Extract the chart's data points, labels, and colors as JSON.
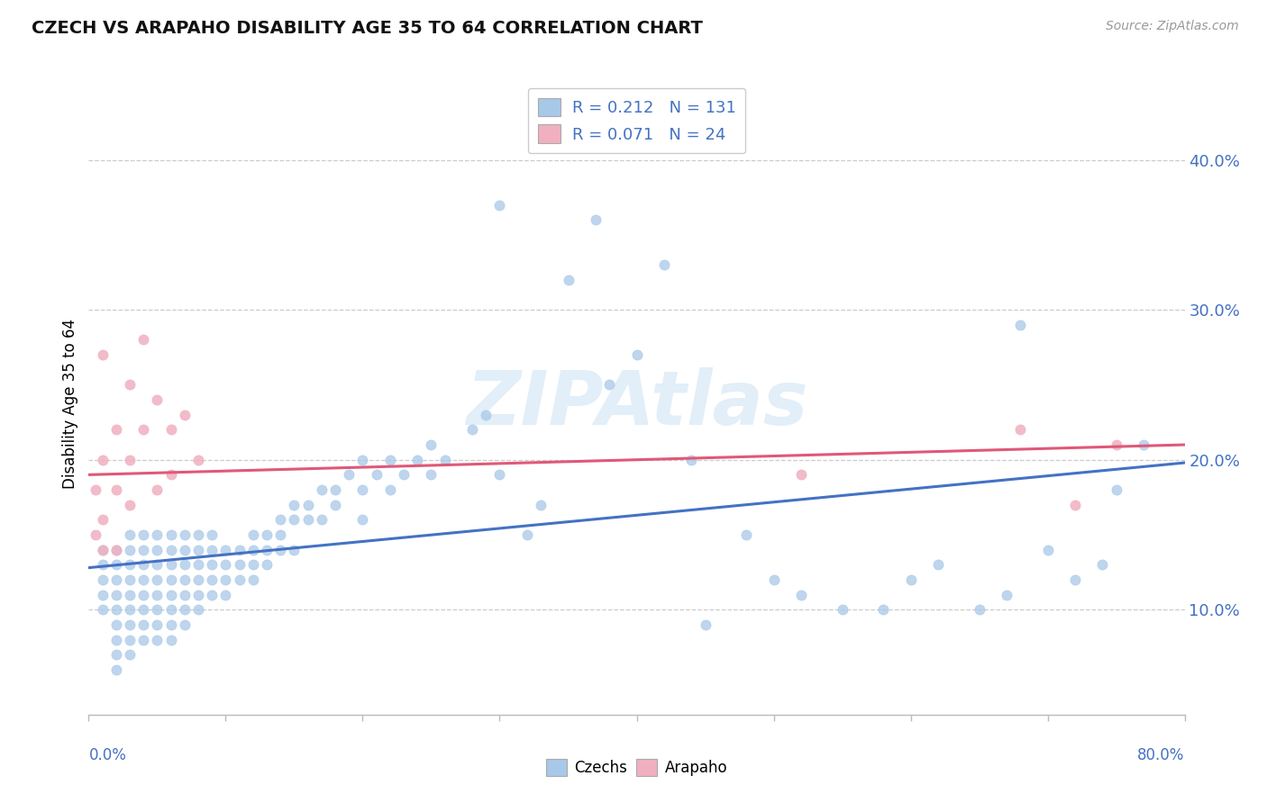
{
  "title": "CZECH VS ARAPAHO DISABILITY AGE 35 TO 64 CORRELATION CHART",
  "source": "Source: ZipAtlas.com",
  "ylabel": "Disability Age 35 to 64",
  "xlim": [
    0.0,
    0.8
  ],
  "ylim": [
    0.03,
    0.445
  ],
  "yticks": [
    0.1,
    0.2,
    0.3,
    0.4
  ],
  "ytick_labels": [
    "10.0%",
    "20.0%",
    "30.0%",
    "40.0%"
  ],
  "xtick_left": "0.0%",
  "xtick_right": "80.0%",
  "blue_scatter_color": "#a8c8e8",
  "pink_scatter_color": "#f0b0c0",
  "blue_line_color": "#4472c4",
  "pink_line_color": "#e05878",
  "axis_color": "#4472c4",
  "legend_line1": "R = 0.212   N = 131",
  "legend_line2": "R = 0.071   N = 24",
  "label_czechs": "Czechs",
  "label_arapaho": "Arapaho",
  "watermark": "ZIPAtlas",
  "czechs_x": [
    0.01,
    0.01,
    0.01,
    0.01,
    0.01,
    0.02,
    0.02,
    0.02,
    0.02,
    0.02,
    0.02,
    0.02,
    0.02,
    0.02,
    0.03,
    0.03,
    0.03,
    0.03,
    0.03,
    0.03,
    0.03,
    0.03,
    0.03,
    0.04,
    0.04,
    0.04,
    0.04,
    0.04,
    0.04,
    0.04,
    0.04,
    0.05,
    0.05,
    0.05,
    0.05,
    0.05,
    0.05,
    0.05,
    0.05,
    0.06,
    0.06,
    0.06,
    0.06,
    0.06,
    0.06,
    0.06,
    0.06,
    0.07,
    0.07,
    0.07,
    0.07,
    0.07,
    0.07,
    0.07,
    0.08,
    0.08,
    0.08,
    0.08,
    0.08,
    0.08,
    0.09,
    0.09,
    0.09,
    0.09,
    0.09,
    0.1,
    0.1,
    0.1,
    0.1,
    0.11,
    0.11,
    0.11,
    0.12,
    0.12,
    0.12,
    0.12,
    0.13,
    0.13,
    0.13,
    0.14,
    0.14,
    0.14,
    0.15,
    0.15,
    0.15,
    0.16,
    0.16,
    0.17,
    0.17,
    0.18,
    0.18,
    0.19,
    0.2,
    0.2,
    0.2,
    0.21,
    0.22,
    0.22,
    0.23,
    0.24,
    0.25,
    0.25,
    0.26,
    0.28,
    0.29,
    0.3,
    0.3,
    0.32,
    0.33,
    0.35,
    0.37,
    0.38,
    0.4,
    0.42,
    0.44,
    0.45,
    0.48,
    0.5,
    0.52,
    0.55,
    0.58,
    0.6,
    0.62,
    0.65,
    0.67,
    0.68,
    0.7,
    0.72,
    0.74,
    0.75,
    0.77
  ],
  "czechs_y": [
    0.14,
    0.13,
    0.12,
    0.11,
    0.1,
    0.14,
    0.13,
    0.12,
    0.11,
    0.1,
    0.09,
    0.08,
    0.07,
    0.06,
    0.15,
    0.14,
    0.13,
    0.12,
    0.11,
    0.1,
    0.09,
    0.08,
    0.07,
    0.15,
    0.14,
    0.13,
    0.12,
    0.11,
    0.1,
    0.09,
    0.08,
    0.15,
    0.14,
    0.13,
    0.12,
    0.11,
    0.1,
    0.09,
    0.08,
    0.15,
    0.14,
    0.13,
    0.12,
    0.11,
    0.1,
    0.09,
    0.08,
    0.15,
    0.14,
    0.13,
    0.12,
    0.11,
    0.1,
    0.09,
    0.15,
    0.14,
    0.13,
    0.12,
    0.11,
    0.1,
    0.15,
    0.14,
    0.13,
    0.12,
    0.11,
    0.14,
    0.13,
    0.12,
    0.11,
    0.14,
    0.13,
    0.12,
    0.15,
    0.14,
    0.13,
    0.12,
    0.15,
    0.14,
    0.13,
    0.16,
    0.15,
    0.14,
    0.17,
    0.16,
    0.14,
    0.17,
    0.16,
    0.18,
    0.16,
    0.18,
    0.17,
    0.19,
    0.2,
    0.18,
    0.16,
    0.19,
    0.2,
    0.18,
    0.19,
    0.2,
    0.21,
    0.19,
    0.2,
    0.22,
    0.23,
    0.19,
    0.37,
    0.15,
    0.17,
    0.32,
    0.36,
    0.25,
    0.27,
    0.33,
    0.2,
    0.09,
    0.15,
    0.12,
    0.11,
    0.1,
    0.1,
    0.12,
    0.13,
    0.1,
    0.11,
    0.29,
    0.14,
    0.12,
    0.13,
    0.18,
    0.21
  ],
  "arapaho_x": [
    0.005,
    0.005,
    0.01,
    0.01,
    0.01,
    0.01,
    0.02,
    0.02,
    0.02,
    0.03,
    0.03,
    0.03,
    0.04,
    0.04,
    0.05,
    0.05,
    0.06,
    0.06,
    0.07,
    0.08,
    0.52,
    0.68,
    0.72,
    0.75
  ],
  "arapaho_y": [
    0.18,
    0.15,
    0.27,
    0.2,
    0.16,
    0.14,
    0.22,
    0.18,
    0.14,
    0.25,
    0.2,
    0.17,
    0.28,
    0.22,
    0.24,
    0.18,
    0.22,
    0.19,
    0.23,
    0.2,
    0.19,
    0.22,
    0.17,
    0.21
  ],
  "blue_trend": [
    0.128,
    0.198
  ],
  "pink_trend": [
    0.19,
    0.21
  ]
}
